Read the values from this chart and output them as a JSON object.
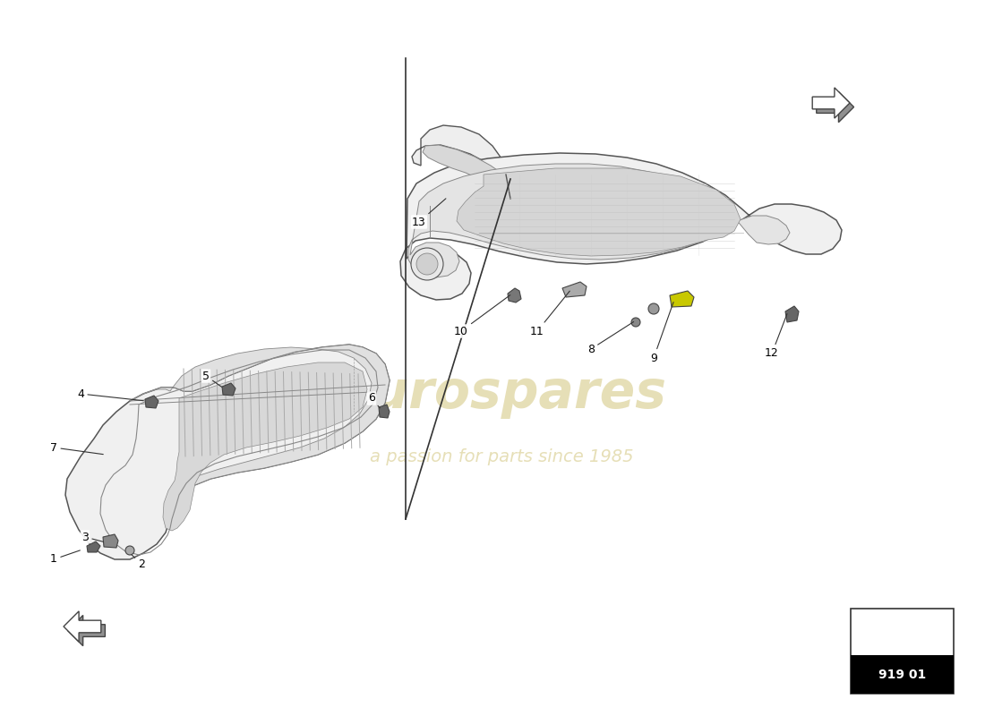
{
  "bg_color": "#ffffff",
  "line_color": "#444444",
  "part_number": "919 01",
  "watermark_text": "eurospares",
  "watermark_sub": "a passion for parts since 1985",
  "fig_width": 11.0,
  "fig_height": 8.0,
  "dpi": 100
}
